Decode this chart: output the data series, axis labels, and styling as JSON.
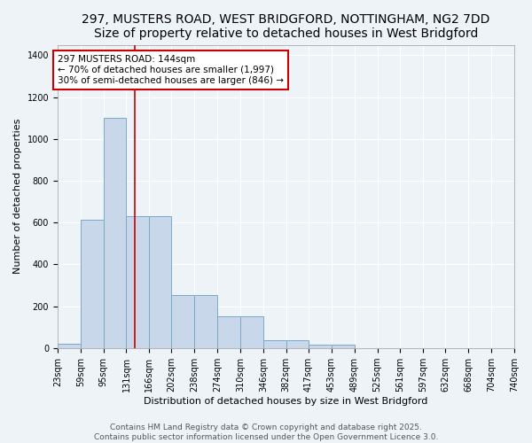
{
  "title_line1": "297, MUSTERS ROAD, WEST BRIDGFORD, NOTTINGHAM, NG2 7DD",
  "title_line2": "Size of property relative to detached houses in West Bridgford",
  "xlabel": "Distribution of detached houses by size in West Bridgford",
  "ylabel": "Number of detached properties",
  "bin_edges": [
    23,
    59,
    95,
    131,
    166,
    202,
    238,
    274,
    310,
    346,
    382,
    417,
    453,
    489,
    525,
    561,
    597,
    632,
    668,
    704,
    740
  ],
  "bar_heights": [
    20,
    615,
    1100,
    630,
    630,
    255,
    255,
    150,
    150,
    35,
    35,
    15,
    15,
    0,
    0,
    0,
    0,
    0,
    0,
    0
  ],
  "bar_color": "#c8d8ea",
  "bar_edge_color": "#7aaac8",
  "red_line_x": 144,
  "annotation_text": "297 MUSTERS ROAD: 144sqm\n← 70% of detached houses are smaller (1,997)\n30% of semi-detached houses are larger (846) →",
  "annotation_box_color": "#ffffff",
  "annotation_box_edge_color": "#cc0000",
  "annotation_text_color": "#000000",
  "red_line_color": "#cc0000",
  "ylim": [
    0,
    1450
  ],
  "yticks": [
    0,
    200,
    400,
    600,
    800,
    1000,
    1200,
    1400
  ],
  "bg_color": "#eef3f8",
  "grid_color": "#ffffff",
  "footer_line1": "Contains HM Land Registry data © Crown copyright and database right 2025.",
  "footer_line2": "Contains public sector information licensed under the Open Government Licence 3.0.",
  "title_fontsize": 10,
  "subtitle_fontsize": 9,
  "axis_label_fontsize": 8,
  "tick_fontsize": 7,
  "annotation_fontsize": 7.5,
  "footer_fontsize": 6.5
}
